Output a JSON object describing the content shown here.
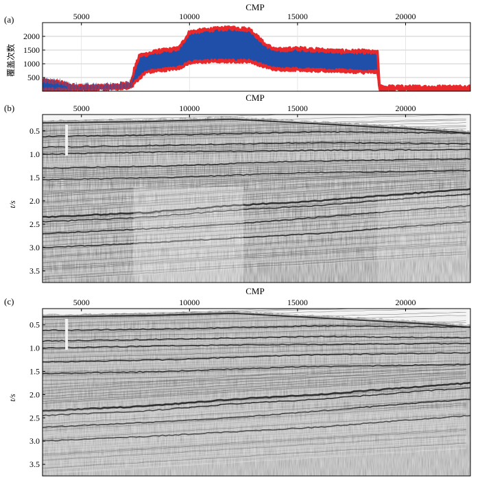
{
  "chart_data": [
    {
      "panel_label": "(a)",
      "type": "line",
      "xlabel": "CMP",
      "ylabel": "覆盖次数",
      "xlim": [
        3200,
        23000
      ],
      "ylim": [
        0,
        2500
      ],
      "x_ticks": [
        5000,
        10000,
        15000,
        20000
      ],
      "y_ticks": [
        500,
        1000,
        1500,
        2000
      ],
      "x_tick_labels": [
        "5000",
        "10000",
        "15000",
        "20000"
      ],
      "y_tick_labels": [
        "500",
        "1000",
        "1500",
        "2000"
      ],
      "grid": true,
      "colors": {
        "band": "#1f4fa8",
        "envelope": "#e8282a"
      },
      "envelope": [
        {
          "x": 3200,
          "upper": 380,
          "lower": 50
        },
        {
          "x": 4000,
          "upper": 320,
          "lower": 60
        },
        {
          "x": 4500,
          "upper": 200,
          "lower": 60
        },
        {
          "x": 5500,
          "upper": 160,
          "lower": 80
        },
        {
          "x": 6500,
          "upper": 200,
          "lower": 100
        },
        {
          "x": 7300,
          "upper": 300,
          "lower": 150
        },
        {
          "x": 7450,
          "upper": 800,
          "lower": 300
        },
        {
          "x": 7700,
          "upper": 1300,
          "lower": 500
        },
        {
          "x": 8000,
          "upper": 1350,
          "lower": 700
        },
        {
          "x": 8500,
          "upper": 1450,
          "lower": 750
        },
        {
          "x": 9000,
          "upper": 1500,
          "lower": 800
        },
        {
          "x": 9500,
          "upper": 1550,
          "lower": 850
        },
        {
          "x": 10000,
          "upper": 2150,
          "lower": 1050
        },
        {
          "x": 11000,
          "upper": 2250,
          "lower": 1100
        },
        {
          "x": 12000,
          "upper": 2300,
          "lower": 1100
        },
        {
          "x": 12800,
          "upper": 2250,
          "lower": 1100
        },
        {
          "x": 13500,
          "upper": 1700,
          "lower": 900
        },
        {
          "x": 14000,
          "upper": 1500,
          "lower": 800
        },
        {
          "x": 15000,
          "upper": 1550,
          "lower": 800
        },
        {
          "x": 16000,
          "upper": 1500,
          "lower": 750
        },
        {
          "x": 17000,
          "upper": 1450,
          "lower": 750
        },
        {
          "x": 18000,
          "upper": 1450,
          "lower": 700
        },
        {
          "x": 18700,
          "upper": 1400,
          "lower": 700
        },
        {
          "x": 18800,
          "upper": 150,
          "lower": 60
        },
        {
          "x": 20000,
          "upper": 140,
          "lower": 60
        },
        {
          "x": 21500,
          "upper": 140,
          "lower": 60
        },
        {
          "x": 23000,
          "upper": 150,
          "lower": 60
        }
      ]
    },
    {
      "panel_label": "(b)",
      "type": "heatmap",
      "xlabel": "CMP",
      "ylabel": "t/s",
      "xlim": [
        3200,
        23000
      ],
      "ylim": [
        3.75,
        0.15
      ],
      "x_ticks": [
        5000,
        10000,
        15000,
        20000
      ],
      "y_ticks": [
        0.5,
        1.0,
        1.5,
        2.0,
        2.5,
        3.0,
        3.5
      ],
      "x_tick_labels": [
        "5000",
        "10000",
        "15000",
        "20000"
      ],
      "y_tick_labels": [
        "0.5",
        "1.0",
        "1.5",
        "2.0",
        "2.5",
        "3.0",
        "3.5"
      ],
      "seafloor": [
        [
          3200,
          0.28
        ],
        [
          8000,
          0.25
        ],
        [
          12000,
          0.2
        ],
        [
          16000,
          0.3
        ],
        [
          20000,
          0.4
        ],
        [
          23000,
          0.5
        ]
      ],
      "reflectors": [
        [
          [
            3200,
            0.62
          ],
          [
            10000,
            0.58
          ],
          [
            16000,
            0.52
          ],
          [
            23000,
            0.55
          ]
        ],
        [
          [
            3200,
            0.85
          ],
          [
            10000,
            0.8
          ],
          [
            16000,
            0.75
          ],
          [
            23000,
            0.78
          ]
        ],
        [
          [
            3200,
            1.0
          ],
          [
            9000,
            0.95
          ],
          [
            15000,
            0.92
          ],
          [
            23000,
            0.9
          ]
        ],
        [
          [
            3200,
            1.3
          ],
          [
            9000,
            1.25
          ],
          [
            15000,
            1.15
          ],
          [
            23000,
            1.1
          ]
        ],
        [
          [
            3200,
            1.55
          ],
          [
            9000,
            1.5
          ],
          [
            15000,
            1.4
          ],
          [
            23000,
            1.35
          ]
        ],
        [
          [
            3200,
            2.35
          ],
          [
            8000,
            2.25
          ],
          [
            12000,
            2.1
          ],
          [
            16000,
            2.0
          ],
          [
            20000,
            1.85
          ],
          [
            23000,
            1.75
          ]
        ],
        [
          [
            3200,
            2.45
          ],
          [
            8000,
            2.35
          ],
          [
            12000,
            2.2
          ],
          [
            16000,
            2.1
          ],
          [
            20000,
            1.95
          ],
          [
            23000,
            1.85
          ]
        ],
        [
          [
            3200,
            2.7
          ],
          [
            8000,
            2.6
          ],
          [
            12000,
            2.5
          ],
          [
            16000,
            2.35
          ],
          [
            20000,
            2.2
          ],
          [
            23000,
            2.1
          ]
        ],
        [
          [
            3200,
            3.0
          ],
          [
            8000,
            2.9
          ],
          [
            12000,
            2.8
          ],
          [
            16000,
            2.7
          ],
          [
            20000,
            2.55
          ],
          [
            23000,
            2.45
          ]
        ]
      ]
    },
    {
      "panel_label": "(c)",
      "type": "heatmap",
      "xlabel": "CMP",
      "ylabel": "t/s",
      "xlim": [
        3200,
        23000
      ],
      "ylim": [
        3.75,
        0.15
      ],
      "x_ticks": [
        5000,
        10000,
        15000,
        20000
      ],
      "y_ticks": [
        0.5,
        1.0,
        1.5,
        2.0,
        2.5,
        3.0,
        3.5
      ],
      "x_tick_labels": [
        "5000",
        "10000",
        "15000",
        "20000"
      ],
      "y_tick_labels": [
        "0.5",
        "1.0",
        "1.5",
        "2.0",
        "2.5",
        "3.0",
        "3.5"
      ],
      "seafloor": [
        [
          3200,
          0.28
        ],
        [
          8000,
          0.25
        ],
        [
          12000,
          0.2
        ],
        [
          16000,
          0.3
        ],
        [
          20000,
          0.4
        ],
        [
          23000,
          0.5
        ]
      ],
      "reflectors": [
        [
          [
            3200,
            0.62
          ],
          [
            10000,
            0.58
          ],
          [
            16000,
            0.52
          ],
          [
            23000,
            0.55
          ]
        ],
        [
          [
            3200,
            0.85
          ],
          [
            10000,
            0.8
          ],
          [
            16000,
            0.75
          ],
          [
            23000,
            0.78
          ]
        ],
        [
          [
            3200,
            1.0
          ],
          [
            9000,
            0.95
          ],
          [
            15000,
            0.92
          ],
          [
            23000,
            0.9
          ]
        ],
        [
          [
            3200,
            1.3
          ],
          [
            9000,
            1.25
          ],
          [
            15000,
            1.15
          ],
          [
            23000,
            1.1
          ]
        ],
        [
          [
            3200,
            1.55
          ],
          [
            9000,
            1.5
          ],
          [
            15000,
            1.4
          ],
          [
            23000,
            1.35
          ]
        ],
        [
          [
            3200,
            2.35
          ],
          [
            8000,
            2.25
          ],
          [
            12000,
            2.1
          ],
          [
            16000,
            2.0
          ],
          [
            20000,
            1.85
          ],
          [
            23000,
            1.75
          ]
        ],
        [
          [
            3200,
            2.45
          ],
          [
            8000,
            2.35
          ],
          [
            12000,
            2.2
          ],
          [
            16000,
            2.1
          ],
          [
            20000,
            1.95
          ],
          [
            23000,
            1.85
          ]
        ],
        [
          [
            3200,
            2.7
          ],
          [
            8000,
            2.6
          ],
          [
            12000,
            2.5
          ],
          [
            16000,
            2.35
          ],
          [
            20000,
            2.2
          ],
          [
            23000,
            2.1
          ]
        ],
        [
          [
            3200,
            3.0
          ],
          [
            8000,
            2.9
          ],
          [
            12000,
            2.8
          ],
          [
            16000,
            2.7
          ],
          [
            20000,
            2.55
          ],
          [
            23000,
            2.45
          ]
        ]
      ]
    }
  ]
}
